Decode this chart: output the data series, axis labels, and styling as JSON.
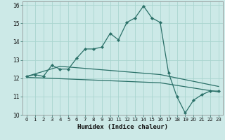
{
  "xlabel": "Humidex (Indice chaleur)",
  "xlim": [
    -0.5,
    23.5
  ],
  "ylim": [
    10,
    16.2
  ],
  "yticks": [
    10,
    11,
    12,
    13,
    14,
    15,
    16
  ],
  "xticks": [
    0,
    1,
    2,
    3,
    4,
    5,
    6,
    7,
    8,
    9,
    10,
    11,
    12,
    13,
    14,
    15,
    16,
    17,
    18,
    19,
    20,
    21,
    22,
    23
  ],
  "bg_color": "#cce9e7",
  "grid_color": "#aad5d0",
  "line_color": "#2a7068",
  "series1_x": [
    0,
    1,
    2,
    3,
    4,
    5,
    6,
    7,
    8,
    9,
    10,
    11,
    12,
    13,
    14,
    15,
    16,
    17,
    18,
    19,
    20,
    21,
    22,
    23
  ],
  "series1_y": [
    12.1,
    12.2,
    12.1,
    12.7,
    12.5,
    12.5,
    13.1,
    13.6,
    13.6,
    13.7,
    14.45,
    14.1,
    15.05,
    15.3,
    15.95,
    15.3,
    15.05,
    12.3,
    11.0,
    10.1,
    10.8,
    11.1,
    11.3,
    11.3
  ],
  "series2_x": [
    0,
    4,
    16,
    23
  ],
  "series2_y": [
    12.1,
    12.65,
    12.2,
    11.55
  ],
  "series3_x": [
    0,
    16,
    23
  ],
  "series3_y": [
    12.05,
    11.75,
    11.25
  ]
}
